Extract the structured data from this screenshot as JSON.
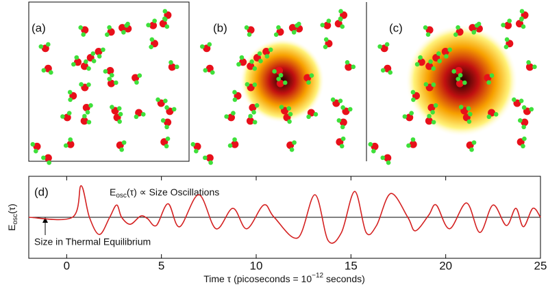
{
  "panels": [
    "(a)",
    "(b)",
    "(c)"
  ],
  "chart_data": {
    "type": "line",
    "panel_label": "(d)",
    "y_label": [
      "E",
      "osc",
      "(τ)"
    ],
    "annotation": [
      "E",
      "osc",
      "(τ) ∝ Size Oscillations"
    ],
    "baseline_label": "Size in Thermal Equilibrium",
    "x_label": [
      "Time τ (picoseconds = 10",
      "−12",
      " seconds)"
    ],
    "xlim": [
      -2,
      25
    ],
    "xticks": [
      0,
      5,
      10,
      15,
      20,
      25
    ],
    "ylim": [
      -1,
      1
    ],
    "baseline": 0,
    "series": [
      {
        "color": "#d42020",
        "x": [
          -2,
          0.3,
          0.76,
          1.2,
          1.73,
          2.27,
          2.64,
          2.9,
          3.36,
          3.9,
          4.26,
          4.73,
          5.35,
          5.96,
          6.97,
          7.88,
          8.77,
          9.5,
          10.4,
          10.95,
          12.2,
          13.1,
          13.8,
          14.5,
          15.2,
          15.8,
          16.35,
          17.1,
          18.0,
          18.4,
          19.1,
          19.5,
          20.2,
          21.1,
          21.8,
          22.5,
          23.2,
          23.7,
          24.1,
          24.6,
          25
        ],
        "values": [
          0,
          0,
          0.77,
          0,
          -0.42,
          0,
          0.3,
          0,
          -0.17,
          0.03,
          -0.03,
          -0.2,
          0.33,
          -0.23,
          0.55,
          -0.28,
          0.22,
          -0.28,
          0.3,
          0,
          -0.5,
          0.55,
          -0.57,
          -0.37,
          0.63,
          -0.37,
          -0.2,
          0.58,
          0,
          -0.33,
          0.05,
          0.3,
          -0.28,
          0.35,
          -0.37,
          0.3,
          -0.2,
          0.22,
          -0.23,
          0.22,
          0
        ]
      }
    ]
  }
}
